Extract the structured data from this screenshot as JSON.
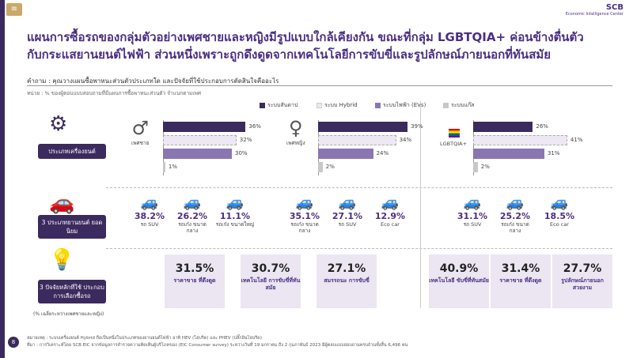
{
  "header": {
    "menu_icon": "menu-icon",
    "logo_text": "SCB",
    "logo_subtitle": "Economic Intelligence Center"
  },
  "title": {
    "line1": "แผนการซื้อรถของกลุ่มตัวอย่างเพศชายและหญิงมีรูปแบบใกล้เคียงกัน ขณะที่กลุ่ม LGBTQIA+ ค่อนข้างตื่นตัว",
    "line2": "กับกระแสยานยนต์ไฟฟ้า ส่วนหนึ่งเพราะถูกดึงดูดจากเทคโนโลยีการขับขี่และรูปลักษณ์ภายนอกที่ทันสมัย"
  },
  "question": "คำถาม : คุณวางแผนซื้อพาหนะส่วนตัวประเภทใด และปัจจัยที่ใช้ประกอบการตัดสินใจคืออะไร",
  "unit_note": "หน่วย : % ของผู้ตอบแบบสอบถามที่มีแผนการซื้อพาหนะส่วนตัว จำแนกตามเพศ",
  "legend": [
    {
      "label": "ระบบสันดาป",
      "color": "#3b2a5e"
    },
    {
      "label": "ระบบ Hybrid",
      "color": "#ede8f3"
    },
    {
      "label": "ระบบไฟฟ้า (EVs)",
      "color": "#8a76b0"
    },
    {
      "label": "ระบบแก๊ส",
      "color": "#c8c8c8"
    }
  ],
  "categories": {
    "engine": "ประเภทเครื่องยนต์",
    "popular": "3 ประเภทยานยนต์ ยอดนิยม",
    "factors": "3 ปัจจัยหลักที่ใช้ ประกอบการเลือกซื้อรถ"
  },
  "groups": [
    {
      "name": "เพศชาย",
      "engine": [
        "36%",
        "32%",
        "30%",
        "1%"
      ],
      "engine_values": [
        36,
        32,
        30,
        1
      ],
      "cars": [
        {
          "pct": "38.2%",
          "label": "รถ SUV"
        },
        {
          "pct": "26.2%",
          "label": "รถเก๋ง ขนาดกลาง"
        },
        {
          "pct": "11.1%",
          "label": "รถเก๋ง ขนาดใหญ่"
        }
      ]
    },
    {
      "name": "เพศหญิง",
      "engine": [
        "39%",
        "34%",
        "24%",
        "2%"
      ],
      "engine_values": [
        39,
        34,
        24,
        2
      ],
      "cars": [
        {
          "pct": "35.1%",
          "label": "รถเก๋ง ขนาดกลาง"
        },
        {
          "pct": "27.1%",
          "label": "รถ SUV"
        },
        {
          "pct": "12.9%",
          "label": "Eco car"
        }
      ]
    },
    {
      "name": "LGBTQIA+",
      "engine": [
        "26%",
        "41%",
        "31%",
        "2%"
      ],
      "engine_values": [
        26,
        41,
        31,
        2
      ],
      "cars": [
        {
          "pct": "31.1%",
          "label": "รถ SUV"
        },
        {
          "pct": "25.2%",
          "label": "รถเก๋ง ขนาดกลาง"
        },
        {
          "pct": "18.5%",
          "label": "Eco car"
        }
      ]
    }
  ],
  "factors_mf": [
    {
      "pct": "31.5%",
      "label": "ราคาขาย ที่ดึงดูด"
    },
    {
      "pct": "30.7%",
      "label": "เทคโนโลยี การขับขี่ที่ทันสมัย"
    },
    {
      "pct": "27.1%",
      "label": "สมรรถนะ การขับขี่"
    }
  ],
  "factors_lgbt": [
    {
      "pct": "40.9%",
      "label": "เทคโนโลยี ขับขี่ที่ทันสมัย"
    },
    {
      "pct": "31.4%",
      "label": "ราคาขาย ที่ดึงดูด"
    },
    {
      "pct": "27.7%",
      "label": "รูปลักษณ์ภายนอก สวยงาม"
    }
  ],
  "factors_caption": "(% เฉลี่ยระหว่างเพศชายและหญิง)",
  "notes": {
    "line1": "หมายเหตุ : ระบบเครื่องยนต์ Hybrid ถือเป็นหนึ่งในประเภทของยานยนต์ไฟฟ้า อาทิ HEV (ไฮบริด) และ PHEV (ปลั๊กอินไฮบริด)",
    "line2": "ที่มา : การวิเคราะห์โดย SCB EIC จากข้อมูลการสำรวจความคิดเห็นผู้บริโภคของ (EIC Consumer survey) ระหว่างวันที่ 19 มกราคม ถึง 2 กุมภาพันธ์ 2023 มีผู้ตอบแบบสอบถามครบถ้วนทั้งสิ้น 6,496 คน"
  },
  "page_number": "8"
}
